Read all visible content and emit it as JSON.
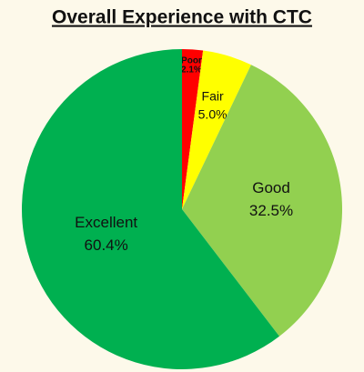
{
  "chart_data": {
    "type": "pie",
    "title": "Overall Experience with CTC",
    "categories": [
      "Poor",
      "Fair",
      "Good",
      "Excellent"
    ],
    "values": [
      2.1,
      5.0,
      32.5,
      60.4
    ],
    "value_labels": [
      "2.1%",
      "5.0%",
      "32.5%",
      "60.4%"
    ],
    "colors": [
      "#ff0000",
      "#ffff00",
      "#92d050",
      "#00b050"
    ]
  }
}
